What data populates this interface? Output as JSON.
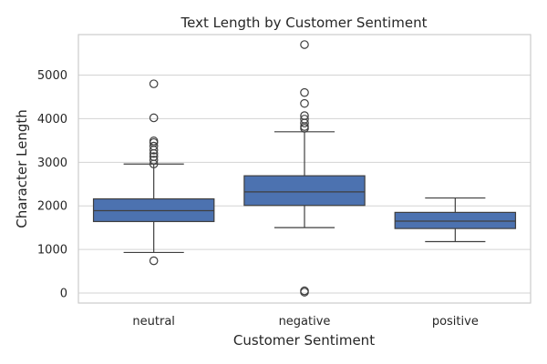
{
  "chart_data": {
    "type": "box",
    "title": "Text Length by Customer Sentiment",
    "xlabel": "Customer Sentiment",
    "ylabel": "Character Length",
    "ylim": [
      -230,
      5930
    ],
    "yticks": [
      0,
      1000,
      2000,
      3000,
      4000,
      5000
    ],
    "grid": true,
    "box_color": "#4c72b0",
    "edge_color": "#3f3f3f",
    "categories": [
      "neutral",
      "negative",
      "positive"
    ],
    "boxes": [
      {
        "category": "neutral",
        "whisker_low": 930,
        "q1": 1640,
        "median": 1890,
        "q3": 2160,
        "whisker_high": 2960,
        "outliers": [
          740,
          2960,
          3050,
          3130,
          3200,
          3280,
          3370,
          3450,
          3490,
          4020,
          4800
        ]
      },
      {
        "category": "negative",
        "whisker_low": 1500,
        "q1": 2010,
        "median": 2320,
        "q3": 2690,
        "whisker_high": 3700,
        "outliers": [
          20,
          50,
          3780,
          3820,
          3900,
          3990,
          4070,
          4350,
          4600,
          5700
        ]
      },
      {
        "category": "positive",
        "whisker_low": 1180,
        "q1": 1480,
        "median": 1650,
        "q3": 1850,
        "whisker_high": 2180,
        "outliers": []
      }
    ]
  }
}
